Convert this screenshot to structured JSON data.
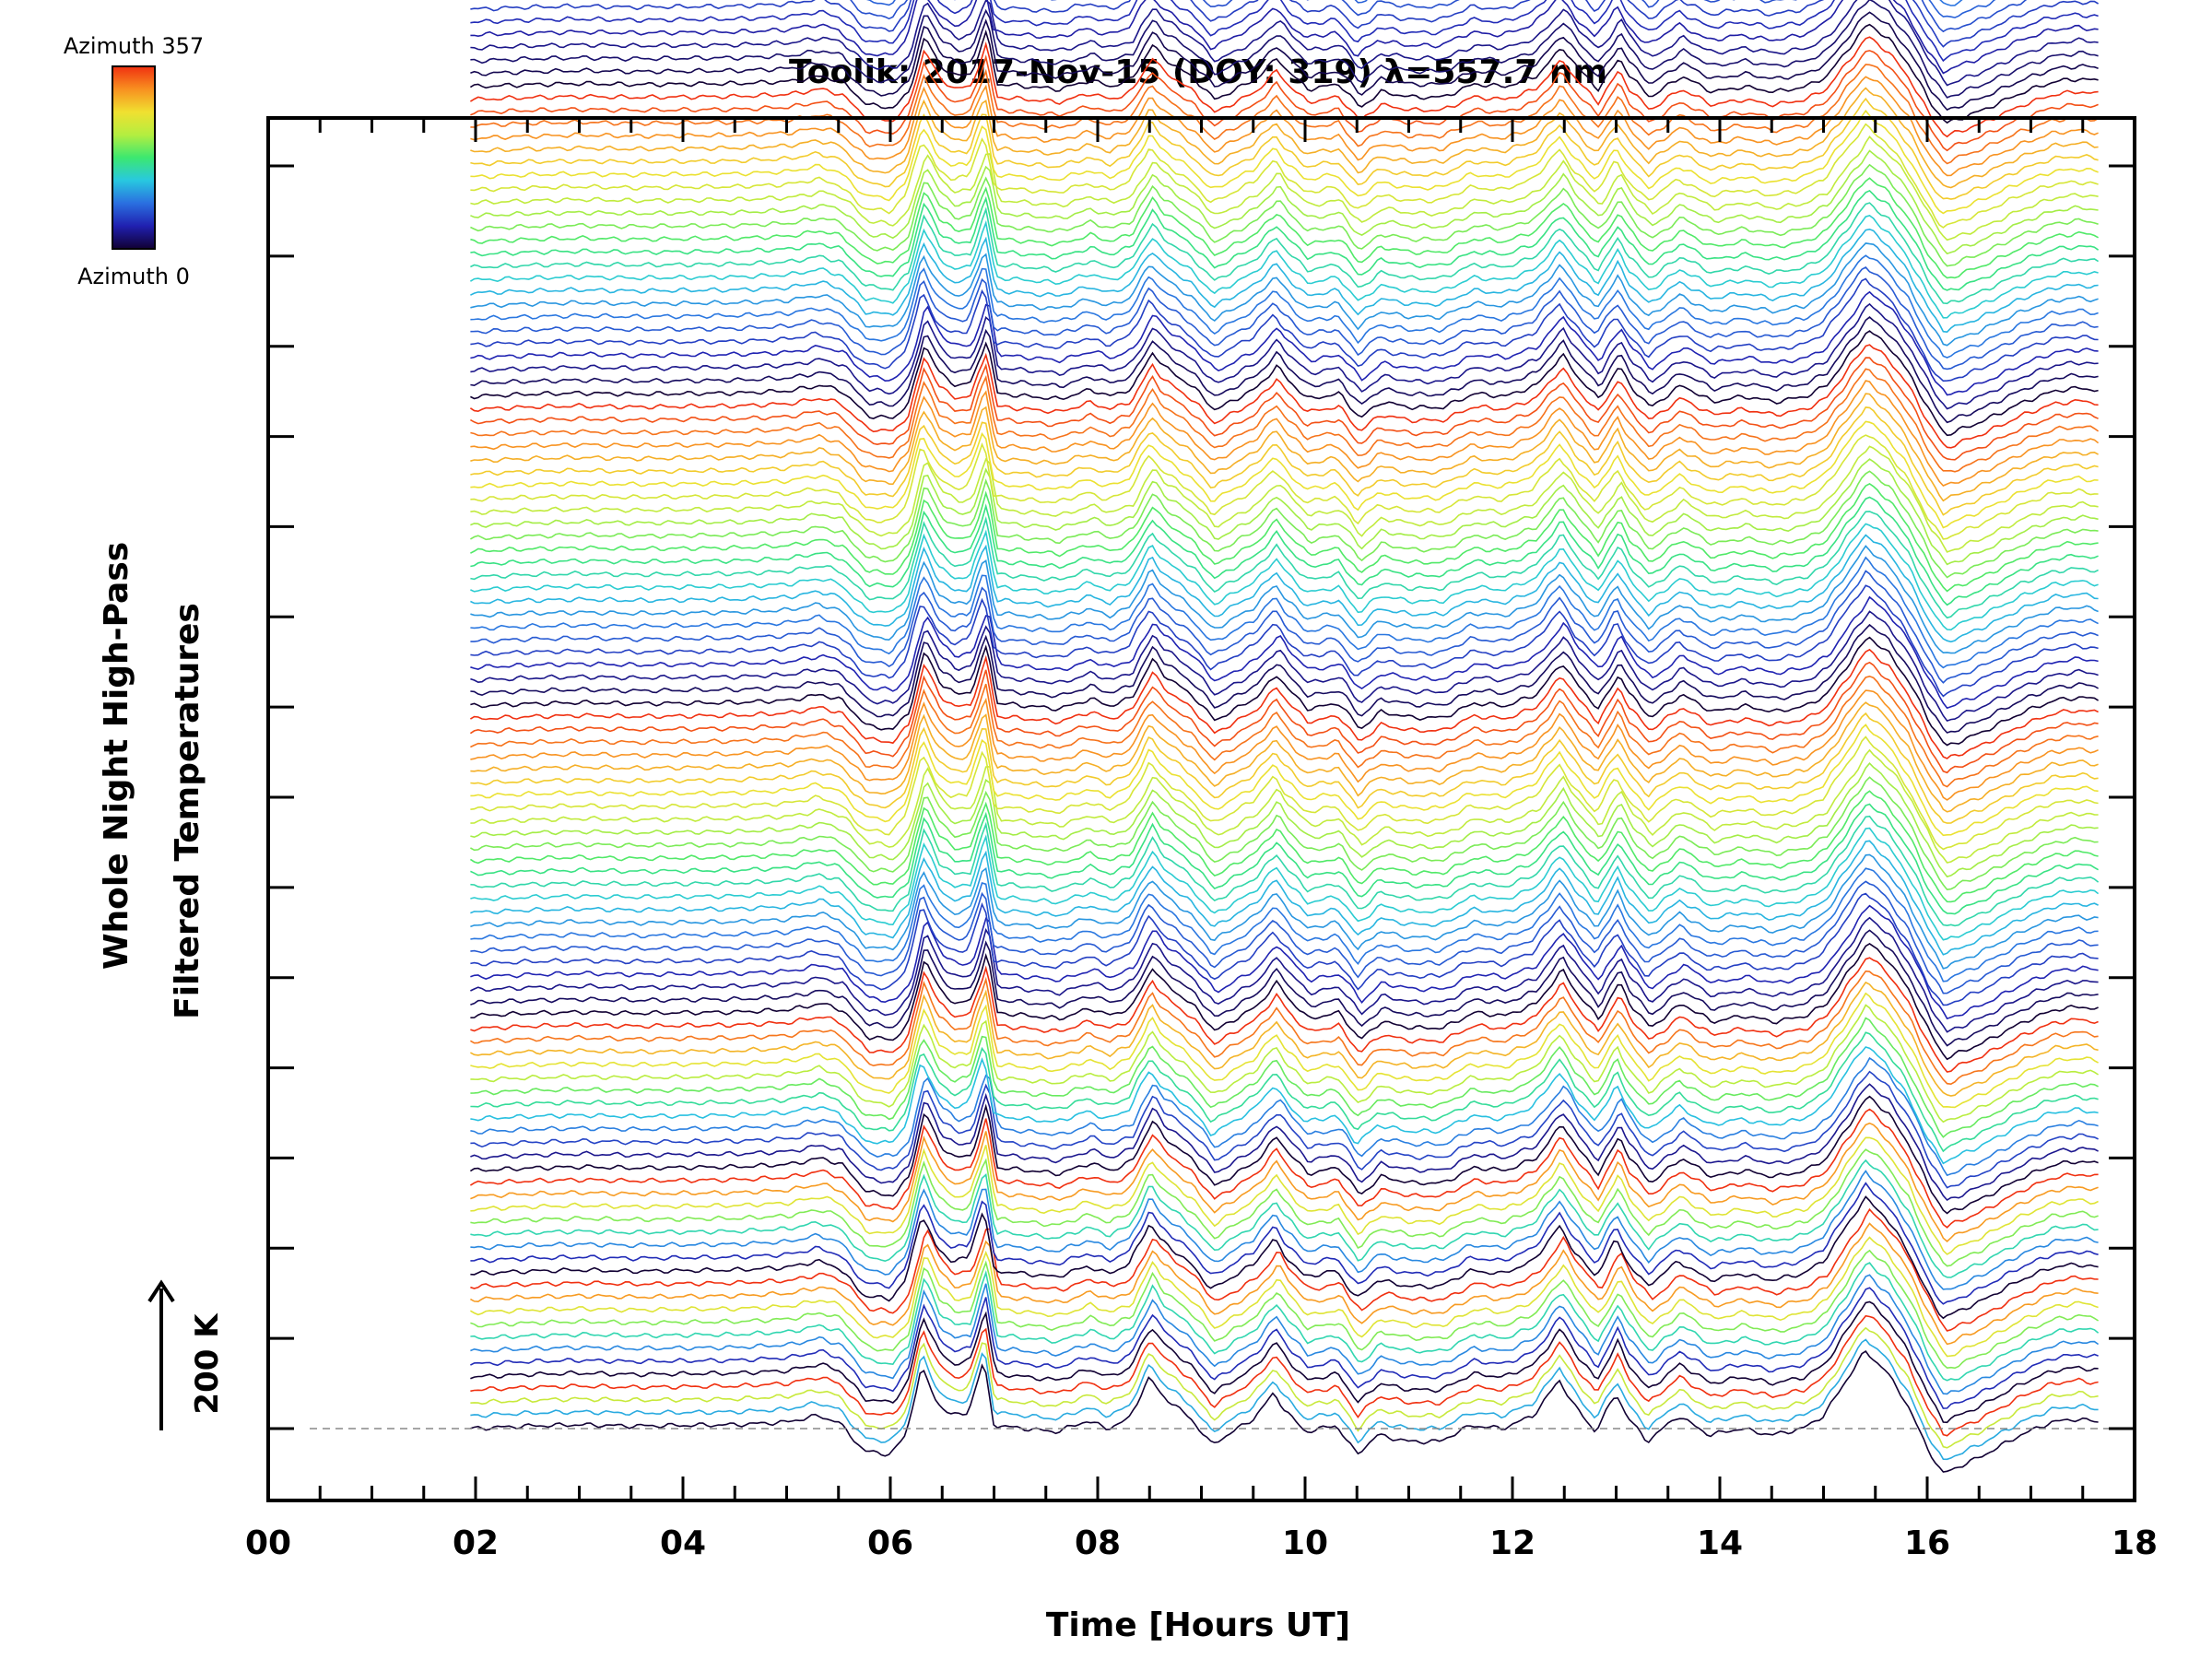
{
  "chart_data": {
    "type": "line",
    "title": "Toolik: 2017-Nov-15 (DOY: 319) λ=557.7 nm",
    "xlabel": "Time [Hours UT]",
    "ylabel_line1": "Whole Night High-Pass",
    "ylabel_line2": "Filtered Temperatures",
    "xlim": [
      0,
      18
    ],
    "x_ticks": [
      "00",
      "02",
      "04",
      "06",
      "08",
      "10",
      "12",
      "14",
      "16",
      "18"
    ],
    "x_tick_values": [
      0,
      2,
      4,
      6,
      8,
      10,
      12,
      14,
      16,
      18
    ],
    "data_time_range": [
      1.95,
      17.65
    ],
    "scale_bar_label": "200 K",
    "scale_bar_value": 200,
    "baseline_style": "dashed",
    "colorbar": {
      "top_label": "Azimuth 357",
      "bottom_label": "Azimuth 0",
      "min": 0,
      "max": 357,
      "colors": [
        "#110033",
        "#2020b0",
        "#2a6fe0",
        "#28c8e0",
        "#3ce870",
        "#b4ee40",
        "#f0e030",
        "#f89020",
        "#f03010"
      ]
    },
    "stack": {
      "n_traces": 140,
      "offset_per_trace_K": 20,
      "group_sizes": [
        4,
        8,
        8,
        12,
        24,
        24,
        24,
        36
      ],
      "mean_trend": [
        [
          1.95,
          0
        ],
        [
          2.5,
          4
        ],
        [
          3.0,
          6
        ],
        [
          3.5,
          4
        ],
        [
          4.0,
          5
        ],
        [
          4.5,
          6
        ],
        [
          5.0,
          10
        ],
        [
          5.3,
          20
        ],
        [
          5.5,
          10
        ],
        [
          5.75,
          -35
        ],
        [
          6.0,
          -40
        ],
        [
          6.15,
          -10
        ],
        [
          6.3,
          95
        ],
        [
          6.45,
          40
        ],
        [
          6.6,
          20
        ],
        [
          6.75,
          25
        ],
        [
          6.9,
          105
        ],
        [
          7.0,
          5
        ],
        [
          7.3,
          0
        ],
        [
          7.6,
          -5
        ],
        [
          7.9,
          12
        ],
        [
          8.1,
          0
        ],
        [
          8.3,
          15
        ],
        [
          8.5,
          80
        ],
        [
          8.6,
          55
        ],
        [
          8.75,
          35
        ],
        [
          8.9,
          15
        ],
        [
          9.1,
          -25
        ],
        [
          9.3,
          -5
        ],
        [
          9.5,
          15
        ],
        [
          9.7,
          55
        ],
        [
          9.8,
          30
        ],
        [
          10.0,
          -5
        ],
        [
          10.3,
          5
        ],
        [
          10.5,
          -40
        ],
        [
          10.7,
          -10
        ],
        [
          11.0,
          -20
        ],
        [
          11.3,
          -20
        ],
        [
          11.6,
          5
        ],
        [
          11.9,
          0
        ],
        [
          12.2,
          20
        ],
        [
          12.45,
          75
        ],
        [
          12.6,
          35
        ],
        [
          12.8,
          -5
        ],
        [
          13.0,
          55
        ],
        [
          13.1,
          20
        ],
        [
          13.3,
          -20
        ],
        [
          13.6,
          20
        ],
        [
          13.9,
          -10
        ],
        [
          14.2,
          0
        ],
        [
          14.5,
          -10
        ],
        [
          14.8,
          0
        ],
        [
          15.0,
          20
        ],
        [
          15.2,
          70
        ],
        [
          15.4,
          120
        ],
        [
          15.6,
          90
        ],
        [
          15.8,
          40
        ],
        [
          16.0,
          -30
        ],
        [
          16.15,
          -70
        ],
        [
          16.5,
          -45
        ],
        [
          16.9,
          -10
        ],
        [
          17.2,
          10
        ],
        [
          17.45,
          15
        ],
        [
          17.65,
          10
        ]
      ]
    }
  }
}
